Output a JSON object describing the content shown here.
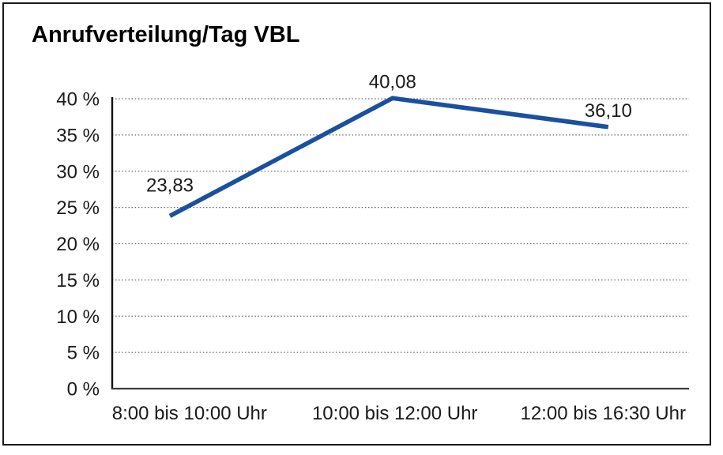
{
  "title": "Anrufverteilung/Tag VBL",
  "chart_data": {
    "type": "line",
    "title": "Anrufverteilung/Tag VBL",
    "categories": [
      "8:00 bis 10:00 Uhr",
      "10:00 bis 12:00 Uhr",
      "12:00 bis 16:30 Uhr"
    ],
    "values": [
      23.83,
      40.08,
      36.1
    ],
    "value_labels": [
      "23,83",
      "40,08",
      "36,10"
    ],
    "xlabel": "",
    "ylabel": "",
    "ylim": [
      0,
      40
    ],
    "ytick_step": 5,
    "ytick_labels": [
      "0 %",
      "5 %",
      "10 %",
      "15 %",
      "20 %",
      "25 %",
      "30 %",
      "35 %",
      "40 %"
    ],
    "grid": "horizontal-dotted",
    "legend": "none",
    "colors": {
      "line": "#1A519E",
      "grid": "#666666",
      "y_axis": "#111111",
      "x_axis": "#3d3d3d",
      "text": "#1a1a1a",
      "frame_border": "#1a1a1a",
      "background": "#ffffff"
    }
  }
}
